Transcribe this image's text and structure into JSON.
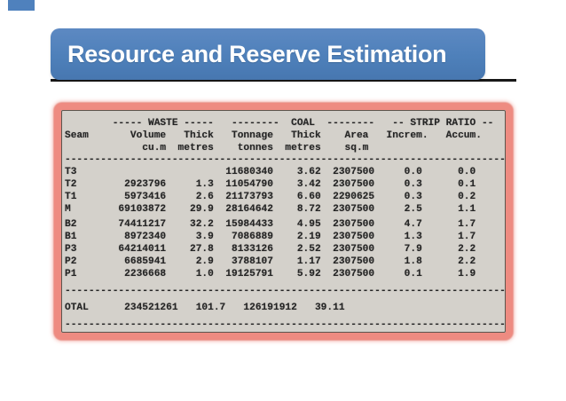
{
  "slide": {
    "title": "Resource and Reserve Estimation",
    "accent_color": "#4f81bd",
    "underline_color": "#181818"
  },
  "report": {
    "bg_color": "#d4d1cb",
    "border_color": "#ee8b81",
    "text_color": "#242424",
    "separator_char": "-",
    "group_headers": [
      "----- WASTE -----",
      "--------  COAL  --------",
      "-- STRIP RATIO --"
    ],
    "column_headers": [
      "Seam",
      "Volume",
      "Thick",
      "Tonnage",
      "Thick",
      "Area",
      "Increm.",
      "Accum."
    ],
    "unit_headers": [
      "cu.m",
      "metres",
      "tonnes",
      "metres",
      "sq.m"
    ],
    "rows": [
      [
        "T3",
        "",
        "",
        "11680340",
        "3.62",
        "2307500",
        "0.0",
        "0.0"
      ],
      [
        "T2",
        "2923796",
        "1.3",
        "11054790",
        "3.42",
        "2307500",
        "0.3",
        "0.1"
      ],
      [
        "T1",
        "5973416",
        "2.6",
        "21173793",
        "6.60",
        "2290625",
        "0.3",
        "0.2"
      ],
      [
        "M",
        "69103872",
        "29.9",
        "28164642",
        "8.72",
        "2307500",
        "2.5",
        "1.1"
      ],
      [
        "B2",
        "74411217",
        "32.2",
        "15984433",
        "4.95",
        "2307500",
        "4.7",
        "1.7"
      ],
      [
        "B1",
        "8972340",
        "3.9",
        "7086889",
        "2.19",
        "2307500",
        "1.3",
        "1.7"
      ],
      [
        "P3",
        "64214011",
        "27.8",
        "8133126",
        "2.52",
        "2307500",
        "7.9",
        "2.2"
      ],
      [
        "P2",
        "6685941",
        "2.9",
        "3788107",
        "1.17",
        "2307500",
        "1.8",
        "2.2"
      ],
      [
        "P1",
        "2236668",
        "1.0",
        "19125791",
        "5.92",
        "2307500",
        "0.1",
        "1.9"
      ]
    ],
    "total_row": [
      "OTAL",
      "234521261",
      "101.7",
      "126191912",
      "39.11"
    ]
  }
}
